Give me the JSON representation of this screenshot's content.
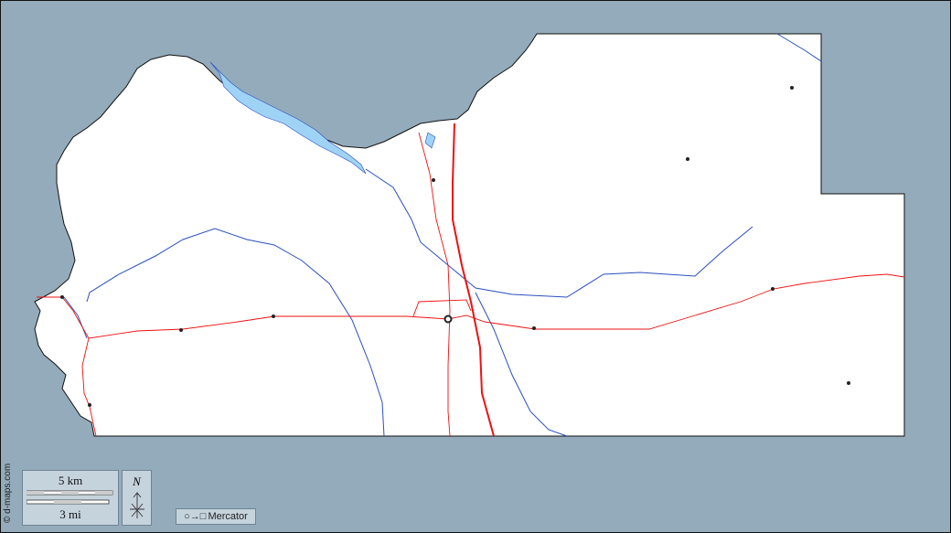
{
  "colors": {
    "background": "#94abbb",
    "land": "#ffffff",
    "water": "#9fd3f5",
    "rivers": "#2a4fbf",
    "roads": "#ee1111",
    "border": "#111111"
  },
  "scale": {
    "metric_label": "5 km",
    "imperial_label": "3 mi"
  },
  "north_arrow": {
    "label": "N"
  },
  "projection": {
    "label": "Mercator",
    "icon": "circle-to-square-icon"
  },
  "credit": "© d-maps.com"
}
